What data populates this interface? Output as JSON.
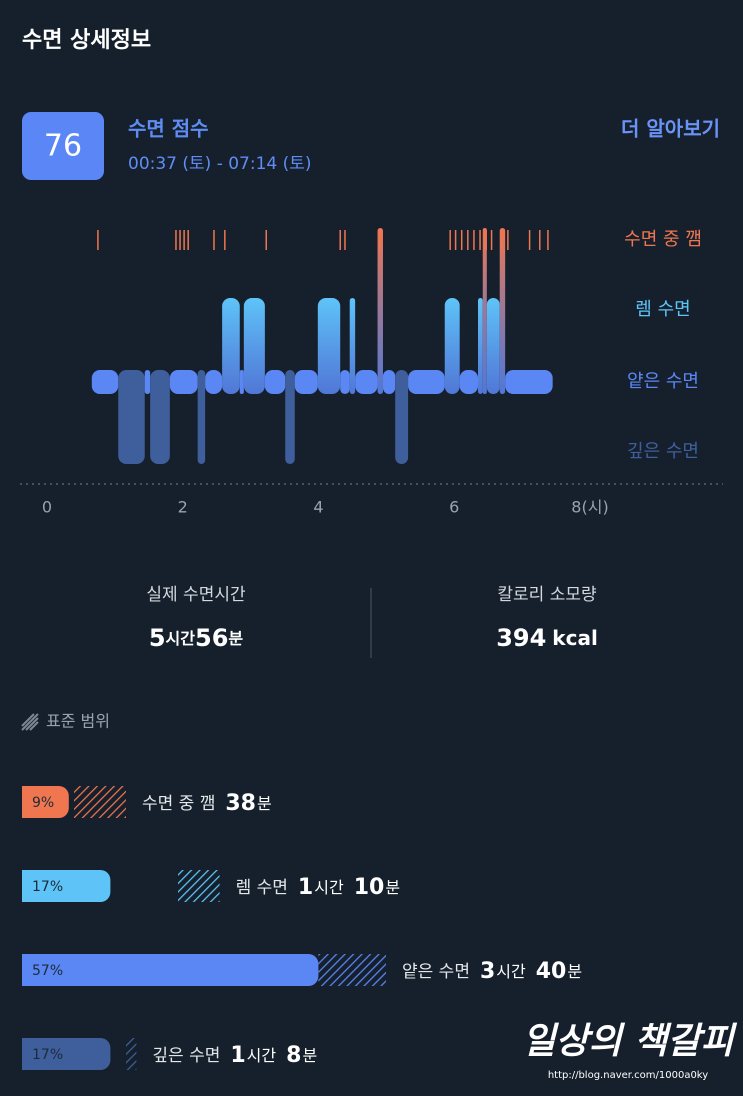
{
  "header": {
    "title": "수면 상세정보"
  },
  "score": {
    "value": "76",
    "label": "수면 점수",
    "time_range": "00:37 (토) - 07:14 (토)",
    "more_link": "더 알아보기"
  },
  "hypnogram": {
    "levels": [
      {
        "name": "수면 중 깸",
        "color": "#f07650"
      },
      {
        "name": "렘 수면",
        "color": "#5ec4f8"
      },
      {
        "name": "얕은 수면",
        "color": "#5b87f4"
      },
      {
        "name": "깊은 수면",
        "color": "#3f5f9c"
      }
    ],
    "xlim": [
      0,
      8
    ],
    "xticks": [
      0,
      2,
      4,
      6,
      {
        "value": 8,
        "label": "8(시)"
      }
    ],
    "segments": [
      [
        0.66,
        1.05,
        2
      ],
      [
        1.05,
        1.44,
        3
      ],
      [
        1.44,
        1.52,
        2
      ],
      [
        1.52,
        1.81,
        3
      ],
      [
        1.81,
        2.22,
        2
      ],
      [
        2.22,
        2.33,
        3
      ],
      [
        2.33,
        2.58,
        2
      ],
      [
        2.58,
        2.84,
        1
      ],
      [
        2.84,
        2.9,
        2
      ],
      [
        2.9,
        3.21,
        1
      ],
      [
        3.21,
        3.51,
        2
      ],
      [
        3.51,
        3.65,
        3
      ],
      [
        3.65,
        3.99,
        2
      ],
      [
        3.99,
        4.32,
        1
      ],
      [
        4.32,
        4.46,
        2
      ],
      [
        4.46,
        4.54,
        1
      ],
      [
        4.54,
        4.87,
        2
      ],
      [
        4.87,
        4.95,
        0
      ],
      [
        4.95,
        5.13,
        2
      ],
      [
        5.13,
        5.32,
        3
      ],
      [
        5.32,
        5.86,
        2
      ],
      [
        5.86,
        6.08,
        1
      ],
      [
        6.08,
        6.35,
        2
      ],
      [
        6.35,
        6.42,
        1
      ],
      [
        6.42,
        6.48,
        0
      ],
      [
        6.48,
        6.67,
        1
      ],
      [
        6.67,
        6.75,
        0
      ],
      [
        6.75,
        7.45,
        2
      ]
    ],
    "awake_marks": [
      0.75,
      1.9,
      1.96,
      2.02,
      2.08,
      2.46,
      2.62,
      3.23,
      4.32,
      4.39,
      4.9,
      5.94,
      6.02,
      6.11,
      6.2,
      6.29,
      6.38,
      6.47,
      6.55,
      6.7,
      6.79,
      7.11,
      7.26,
      7.38
    ]
  },
  "summary": [
    {
      "label": "실제 수면시간",
      "value": [
        "5",
        "시간",
        "56",
        "분"
      ]
    },
    {
      "label": "칼로리 소모량",
      "value": [
        "394",
        "kcal"
      ]
    }
  ],
  "legend": "표준 범위",
  "stages": [
    {
      "percent": 9,
      "percent_label": "9%",
      "name": "수면 중 깸",
      "duration": [
        "38",
        "분"
      ],
      "range": [
        10,
        20
      ]
    },
    {
      "percent": 17,
      "percent_label": "17%",
      "name": "렘 수면",
      "duration": [
        "1",
        "시간",
        "10",
        "분"
      ],
      "range": [
        30,
        38
      ]
    },
    {
      "percent": 57,
      "percent_label": "57%",
      "name": "얕은 수면",
      "duration": [
        "3",
        "시간",
        "40",
        "분"
      ],
      "range": [
        57,
        70
      ]
    },
    {
      "percent": 17,
      "percent_label": "17%",
      "name": "깊은 수면",
      "duration": [
        "1",
        "시간",
        "8",
        "분"
      ],
      "range": [
        20,
        22
      ]
    }
  ],
  "watermark": {
    "text": "일상의 책갈피",
    "url": "http://blog.naver.com/1000a0ky"
  }
}
